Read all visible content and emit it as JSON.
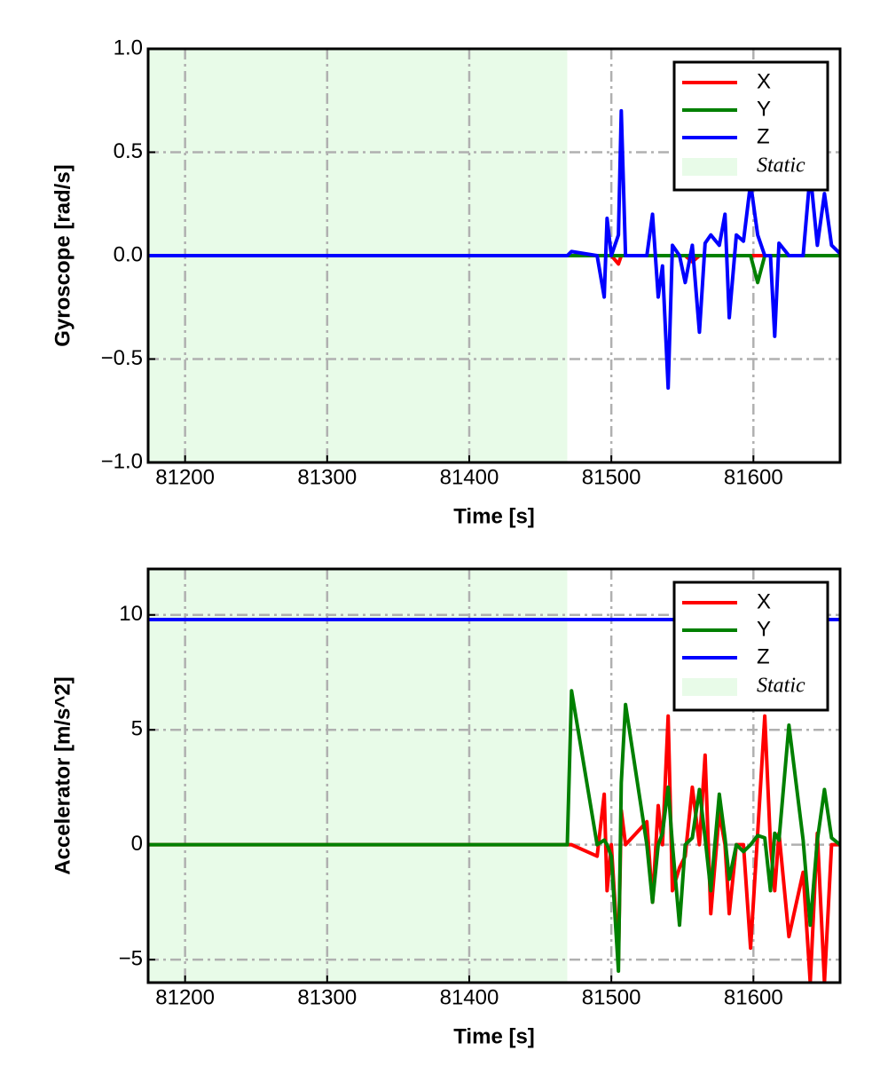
{
  "chart_data": [
    {
      "type": "line",
      "xlabel": "Time [s]",
      "ylabel": "Gyroscope [rad/s]",
      "x": [
        81174,
        81300,
        81469,
        81472,
        81490,
        81495,
        81497,
        81500,
        81505,
        81507,
        81510,
        81525,
        81529,
        81533,
        81536,
        81540,
        81543,
        81548,
        81552,
        81557,
        81562,
        81566,
        81570,
        81576,
        81580,
        81583,
        81588,
        81593,
        81598,
        81603,
        81608,
        81612,
        81615,
        81618,
        81625,
        81635,
        81640,
        81645,
        81650,
        81655,
        81661
      ],
      "series": [
        {
          "name": "X",
          "color": "#ff0000",
          "values": [
            0,
            0,
            0,
            0,
            0,
            0,
            0,
            0,
            -0.04,
            0,
            0,
            0,
            0,
            0,
            0,
            0,
            0,
            0,
            0,
            -0.03,
            0,
            0,
            0,
            0,
            0,
            0,
            0,
            0,
            0,
            0,
            0,
            0,
            0,
            0,
            0,
            0,
            0,
            0,
            0,
            0,
            0
          ]
        },
        {
          "name": "Y",
          "color": "#008000",
          "values": [
            0,
            0,
            0,
            0,
            0,
            0,
            0,
            0,
            0,
            0,
            0,
            0,
            0,
            0,
            0,
            0,
            0,
            0,
            0,
            0,
            0,
            0,
            0,
            0,
            0,
            0,
            0,
            0,
            0,
            -0.13,
            0,
            0,
            0,
            0,
            0,
            0,
            0,
            0,
            0,
            0,
            0
          ]
        },
        {
          "name": "Z",
          "color": "#0000ff",
          "values": [
            0,
            0,
            0,
            0.02,
            0,
            -0.2,
            0.18,
            0,
            0.1,
            0.7,
            0,
            0,
            0.2,
            -0.2,
            -0.05,
            -0.64,
            0.05,
            0,
            -0.13,
            0.05,
            -0.37,
            0.06,
            0.1,
            0.05,
            0.2,
            -0.3,
            0.1,
            0.07,
            0.35,
            0.1,
            0,
            0,
            -0.39,
            0.06,
            0,
            0,
            0.4,
            0.05,
            0.3,
            0.05,
            0.01
          ]
        }
      ],
      "static": {
        "label": "Static",
        "range": [
          81174,
          81469
        ],
        "color": "#e8fbe8"
      },
      "xlim": [
        81174,
        81661
      ],
      "xticks": [
        81200,
        81300,
        81400,
        81500,
        81600
      ],
      "ylim": [
        -1,
        1
      ],
      "yticks": [
        {
          "value": -1,
          "label": "−1.0"
        },
        {
          "value": -0.5,
          "label": "−0.5"
        },
        {
          "value": 0,
          "label": "0.0"
        },
        0.5,
        {
          "value": 1,
          "label": "1.0"
        }
      ],
      "grid": true,
      "legend": "upper right"
    },
    {
      "type": "line",
      "xlabel": "Time [s]",
      "ylabel": "Accelerator [m/s^2]",
      "x": [
        81174,
        81300,
        81469,
        81472,
        81490,
        81495,
        81497,
        81500,
        81505,
        81507,
        81510,
        81525,
        81529,
        81533,
        81536,
        81540,
        81543,
        81548,
        81552,
        81557,
        81562,
        81566,
        81570,
        81576,
        81580,
        81583,
        81588,
        81593,
        81598,
        81603,
        81608,
        81612,
        81615,
        81618,
        81625,
        81635,
        81640,
        81645,
        81650,
        81655,
        81661
      ],
      "series": [
        {
          "name": "X",
          "color": "#ff0000",
          "values": [
            0,
            0,
            0,
            0,
            -0.5,
            2.2,
            -2,
            0,
            -5,
            1.5,
            0,
            1,
            -2.5,
            1.7,
            0,
            5.6,
            -2,
            -1,
            -0.5,
            2.5,
            0,
            3.9,
            -3,
            1.4,
            0,
            -3,
            0,
            0,
            -4.5,
            0.5,
            5.6,
            0,
            -2,
            0.5,
            -4,
            -1.2,
            -6,
            0.5,
            -6,
            0,
            0
          ]
        },
        {
          "name": "Y",
          "color": "#008000",
          "values": [
            0,
            0,
            0,
            6.7,
            0,
            0.2,
            0,
            -0.5,
            -5.5,
            2.7,
            6.1,
            0,
            -2.5,
            0,
            0.5,
            2.5,
            0,
            -3.5,
            0,
            0.3,
            2.4,
            0.3,
            -2,
            2.2,
            0.3,
            -1.5,
            0,
            -0.3,
            0,
            0.4,
            0.3,
            -2,
            0.5,
            0.2,
            5.2,
            0.2,
            -3.5,
            0.2,
            2.4,
            0.3,
            0
          ]
        },
        {
          "name": "Z",
          "color": "#0000ff",
          "values": [
            9.8,
            9.8,
            9.8,
            9.8,
            9.8,
            9.8,
            9.8,
            9.8,
            9.8,
            9.8,
            9.8,
            9.8,
            9.8,
            9.8,
            9.8,
            9.8,
            9.8,
            9.8,
            9.8,
            9.8,
            9.8,
            9.8,
            9.8,
            9.8,
            9.8,
            9.8,
            9.8,
            9.8,
            9.8,
            9.8,
            9.8,
            9.8,
            9.8,
            9.8,
            9.8,
            9.8,
            9.8,
            9.8,
            9.8,
            9.8,
            9.8
          ]
        }
      ],
      "static": {
        "label": "Static",
        "range": [
          81174,
          81469
        ],
        "color": "#e8fbe8"
      },
      "xlim": [
        81174,
        81661
      ],
      "xticks": [
        81200,
        81300,
        81400,
        81500,
        81600
      ],
      "ylim": [
        -6,
        12
      ],
      "yticks": [
        {
          "value": -5,
          "label": "−5"
        },
        0,
        5,
        10
      ],
      "grid": true,
      "legend": "upper right"
    }
  ]
}
